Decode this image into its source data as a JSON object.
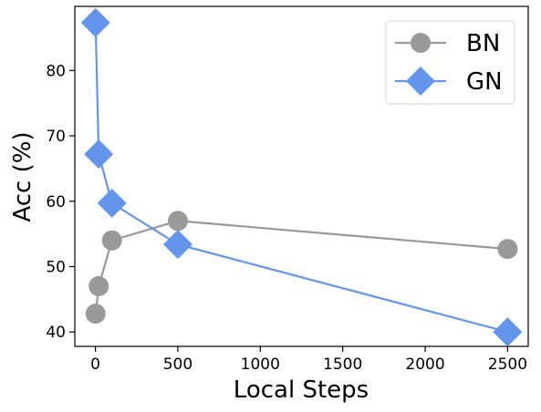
{
  "chart_data": {
    "type": "line",
    "title": "",
    "xlabel": "Local Steps",
    "ylabel": "Acc (%)",
    "xlim": [
      -125,
      2625
    ],
    "ylim": [
      37.8,
      89.8
    ],
    "xticks": [
      0,
      500,
      1000,
      1500,
      2000,
      2500
    ],
    "yticks": [
      40,
      50,
      60,
      70,
      80
    ],
    "grid": false,
    "legend_position": "top-right",
    "series": [
      {
        "name": "BN",
        "color": "#999999",
        "marker": "circle",
        "x": [
          1,
          20,
          100,
          500,
          2500
        ],
        "y": [
          42.8,
          47.0,
          54.0,
          57.0,
          52.7
        ]
      },
      {
        "name": "GN",
        "color": "#6495ED",
        "marker": "diamond",
        "x": [
          1,
          20,
          100,
          500,
          2500
        ],
        "y": [
          87.3,
          67.2,
          59.7,
          53.4,
          40.0
        ]
      }
    ]
  }
}
